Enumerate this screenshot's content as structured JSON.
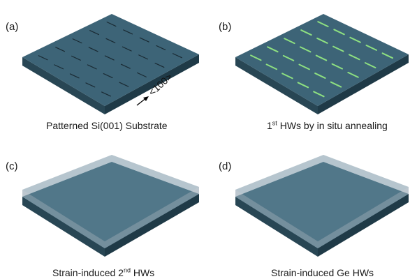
{
  "panels": [
    {
      "label": "(a)",
      "caption": "Patterned Si(001) Substrate",
      "dir_label": "<100>"
    },
    {
      "label": "(b)",
      "caption_pre": "1",
      "caption_sup": "st",
      "caption_post": " HWs by in situ annealing"
    },
    {
      "label": "(c)",
      "caption_pre": "Strain-induced 2",
      "caption_sup": "nd",
      "caption_post": " HWs"
    },
    {
      "label": "(d)",
      "caption": "Strain-induced Ge HWs"
    }
  ],
  "colors": {
    "substrate_top": "#3d6477",
    "substrate_left": "#284654",
    "substrate_right": "#1f3a47",
    "cap_layer": "#b9c4cb",
    "hw_first": "#8ee080",
    "hw_second": "#6fe0c8",
    "hw_ge": "#e6b83a",
    "pit": "#1a2a33"
  }
}
